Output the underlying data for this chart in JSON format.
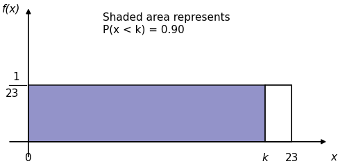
{
  "x_max": 23,
  "y_val": 1.0,
  "k_val": 20.7,
  "shade_color": "#8080c0",
  "shade_alpha": 0.85,
  "rect_color": "white",
  "line_color": "black",
  "annotation_line1": "Shaded area represents",
  "annotation_line2": "P(x < k) = 0.90",
  "xlabel": "x",
  "ylabel": "f(x)",
  "xtick_labels": [
    "0",
    "k",
    "23"
  ],
  "figsize": [
    4.87,
    2.4
  ],
  "dpi": 100,
  "background_color": "white",
  "font_size": 11,
  "xlim_min": -2.0,
  "xlim_max": 26.5,
  "ylim_min": -0.35,
  "ylim_max": 2.5
}
